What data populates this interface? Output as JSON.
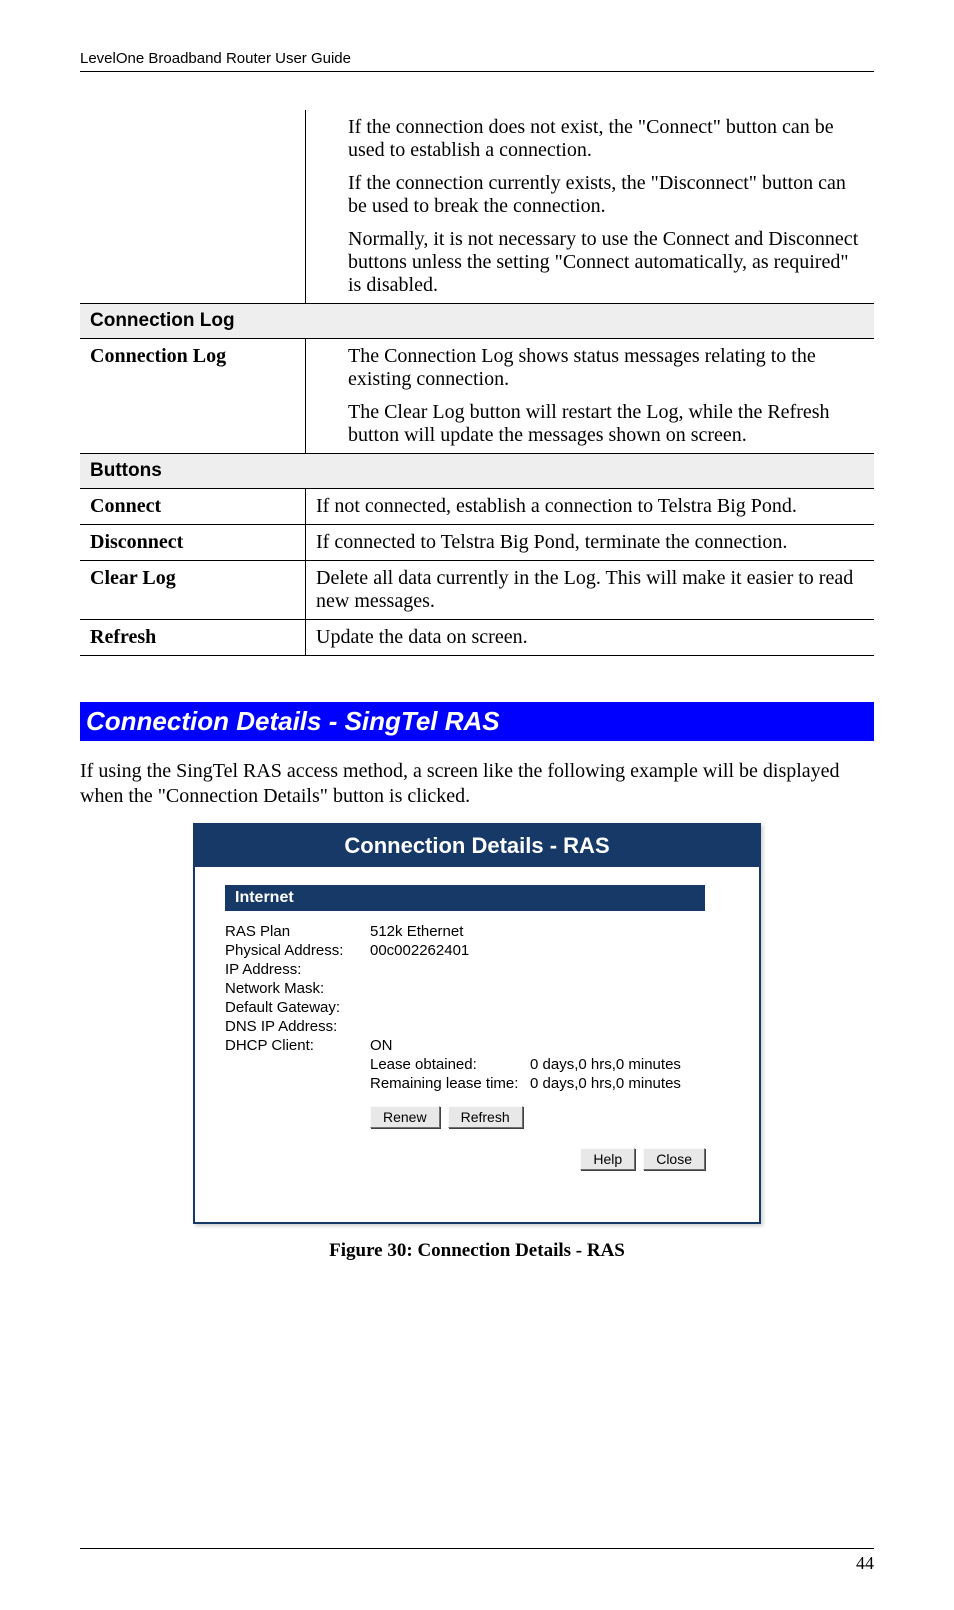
{
  "header": "LevelOne Broadband Router User Guide",
  "table1": {
    "row0": {
      "p1": "If the connection does not exist, the \"Connect\" button can be used to establish a connection.",
      "p2": "If the connection currently exists, the \"Disconnect\" button can be used to break the connection.",
      "p3": "Normally, it is not necessary to use the Connect and Disconnect buttons unless the setting \"Connect automatically, as required\" is disabled."
    },
    "section_connlog": "Connection Log",
    "row_connlog": {
      "label": "Connection Log",
      "p1": "The Connection Log shows status messages relating to the existing connection.",
      "p2": "The Clear Log button will restart the Log, while the Refresh button will update the messages shown on screen."
    },
    "section_buttons": "Buttons",
    "row_connect": {
      "label": "Connect",
      "desc": "If not connected, establish a connection to Telstra Big Pond."
    },
    "row_disconnect": {
      "label": "Disconnect",
      "desc": "If connected to Telstra Big Pond, terminate the connection."
    },
    "row_clearlog": {
      "label": "Clear Log",
      "desc": "Delete all data currently in the Log. This will make it easier to read new messages."
    },
    "row_refresh": {
      "label": "Refresh",
      "desc": "Update the data on screen."
    }
  },
  "section_heading": "Connection Details - SingTel RAS",
  "intro_para": "If using the SingTel RAS access method, a screen like the following example will be displayed when the \"Connection Details\" button is clicked.",
  "figure": {
    "titlebar": "Connection Details - RAS",
    "section_label": "Internet",
    "kv": {
      "ras_plan_k": "RAS Plan",
      "ras_plan_v": "512k Ethernet",
      "physaddr_k": "Physical Address:",
      "physaddr_v": "00c002262401",
      "ipaddr_k": "IP Address:",
      "netmask_k": "Network Mask:",
      "gateway_k": "Default Gateway:",
      "dns_k": "DNS IP Address:",
      "dhcp_k": "DHCP Client:",
      "dhcp_v": "ON"
    },
    "lease": {
      "obtained_k": "Lease obtained:",
      "obtained_v": "0 days,0 hrs,0 minutes",
      "remaining_k": "Remaining lease time:",
      "remaining_v": "0 days,0 hrs,0 minutes"
    },
    "buttons": {
      "renew": "Renew",
      "refresh": "Refresh",
      "help": "Help",
      "close": "Close"
    }
  },
  "figure_caption": "Figure 30: Connection Details - RAS",
  "page_number": "44"
}
